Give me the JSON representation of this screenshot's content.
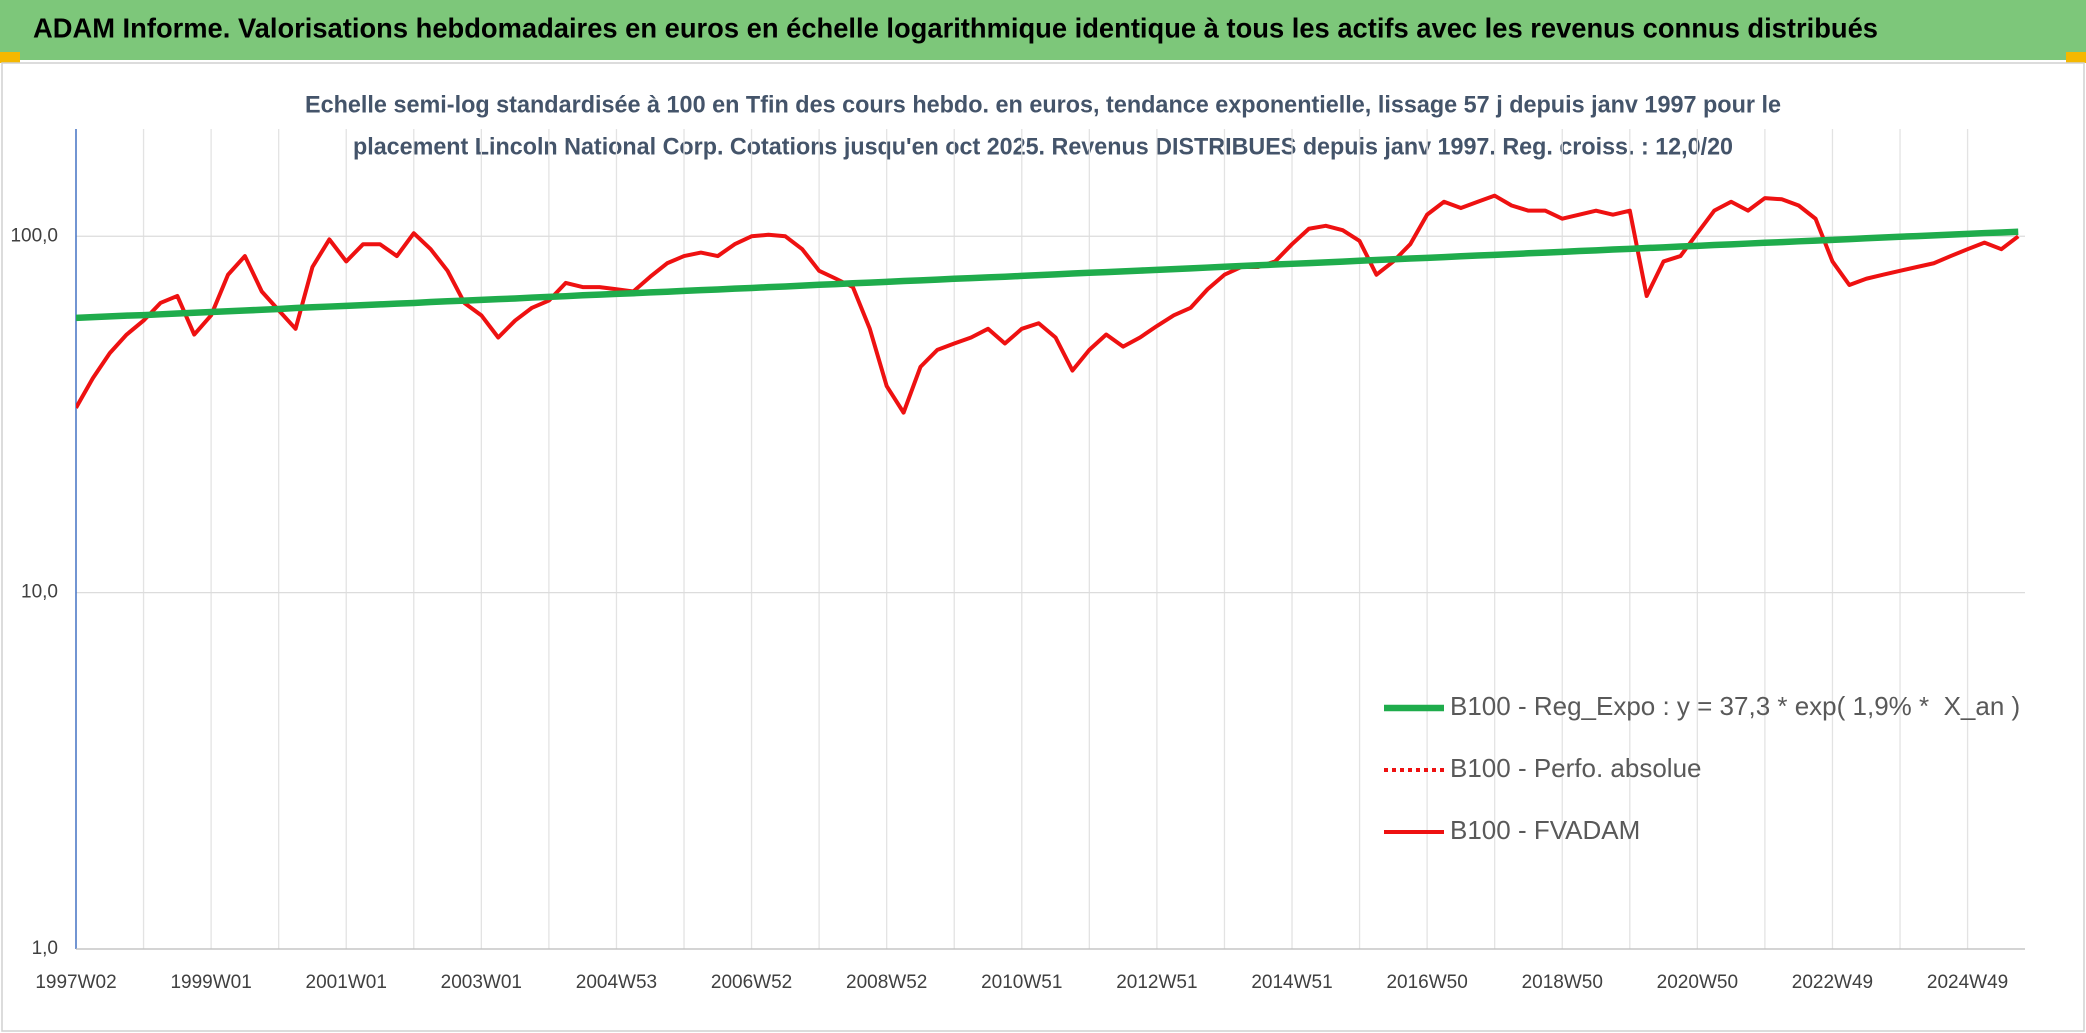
{
  "chart_data": {
    "type": "line",
    "title": "ADAM Informe. Valorisations hebdomadaires en euros en échelle logarithmique identique à tous les actifs avec les revenus connus distribués",
    "subtitle": [
      "Echelle semi-log standardisée à 100 en Tfin des cours hebdo. en euros, tendance exponentielle, lissage 57 j depuis janv 1997 pour le",
      "placement Lincoln National Corp. Cotations jusqu'en oct 2025. Revenus DISTRIBUES depuis janv 1997. Reg. croiss. : 12,0/20"
    ],
    "log_scale": true,
    "grid": true,
    "legend": "bottom-right",
    "ylim": [
      1,
      200
    ],
    "yticks": [
      {
        "value": 1,
        "label": "1,0"
      },
      {
        "value": 10,
        "label": "10,0"
      },
      {
        "value": 100,
        "label": "100,0"
      }
    ],
    "categories": [
      "1997W02",
      null,
      null,
      null,
      null,
      null,
      null,
      null,
      "1999W01",
      null,
      null,
      null,
      null,
      null,
      null,
      null,
      "2001W01",
      null,
      null,
      null,
      null,
      null,
      null,
      null,
      "2003W01",
      null,
      null,
      null,
      null,
      null,
      null,
      null,
      "2004W53",
      null,
      null,
      null,
      null,
      null,
      null,
      null,
      "2006W52",
      null,
      null,
      null,
      null,
      null,
      null,
      null,
      "2008W52",
      null,
      null,
      null,
      null,
      null,
      null,
      null,
      "2010W51",
      null,
      null,
      null,
      null,
      null,
      null,
      null,
      "2012W51",
      null,
      null,
      null,
      null,
      null,
      null,
      null,
      "2014W51",
      null,
      null,
      null,
      null,
      null,
      null,
      null,
      "2016W50",
      null,
      null,
      null,
      null,
      null,
      null,
      null,
      "2018W50",
      null,
      null,
      null,
      null,
      null,
      null,
      null,
      "2020W50",
      null,
      null,
      null,
      null,
      null,
      null,
      null,
      "2022W49",
      null,
      null,
      null,
      null,
      null,
      null,
      null,
      "2024W49",
      null,
      null,
      null
    ],
    "series": [
      {
        "name": "B100 - Reg_Expo : y = 37,3 * exp( 1,9% *  X_an )",
        "color": "#1fac4c",
        "style": "solid",
        "width": 6.5,
        "values": [
          59.0,
          59.3,
          59.6,
          59.9,
          60.1,
          60.4,
          60.7,
          61.0,
          61.3,
          61.6,
          61.9,
          62.2,
          62.5,
          62.9,
          63.2,
          63.5,
          63.8,
          64.1,
          64.4,
          64.7,
          65.0,
          65.4,
          65.7,
          66.0,
          66.3,
          66.6,
          66.9,
          67.3,
          67.6,
          67.9,
          68.3,
          68.6,
          68.9,
          69.2,
          69.6,
          69.9,
          70.3,
          70.6,
          70.9,
          71.3,
          71.6,
          72.0,
          72.3,
          72.7,
          73.1,
          73.4,
          73.8,
          74.1,
          74.5,
          74.9,
          75.2,
          75.6,
          76.0,
          76.3,
          76.7,
          77.0,
          77.4,
          77.8,
          78.2,
          78.6,
          79.0,
          79.3,
          79.7,
          80.1,
          80.5,
          80.9,
          81.3,
          81.7,
          82.1,
          82.5,
          82.9,
          83.3,
          83.7,
          84.1,
          84.5,
          84.9,
          85.4,
          85.8,
          86.2,
          86.6,
          87.0,
          87.4,
          87.9,
          88.3,
          88.7,
          89.1,
          89.6,
          90.0,
          90.4,
          90.9,
          91.3,
          91.8,
          92.2,
          92.7,
          93.1,
          93.6,
          94.0,
          94.5,
          94.9,
          95.4,
          95.9,
          96.3,
          96.8,
          97.2,
          97.7,
          98.2,
          98.7,
          99.2,
          99.7,
          100.1,
          100.6,
          101.1,
          101.6,
          102.1,
          102.5,
          103.0
        ]
      },
      {
        "name": "B100 - Perfo. absolue",
        "color": "#ee1111",
        "style": "dotted",
        "width": 4,
        "values": [
          null,
          null,
          null,
          null,
          null,
          null,
          null,
          null,
          null,
          null,
          null,
          null,
          null,
          null,
          null,
          null,
          null,
          null,
          null,
          null,
          null,
          null,
          null,
          null,
          null,
          null,
          null,
          null,
          null,
          null,
          null,
          null,
          null,
          null,
          null,
          null,
          null,
          null,
          null,
          null,
          null,
          null,
          null,
          null,
          null,
          null,
          null,
          null,
          null,
          null,
          null,
          null,
          null,
          null,
          null,
          null,
          null,
          null,
          null,
          null,
          null,
          null,
          null,
          null,
          null,
          null,
          null,
          null,
          null,
          null,
          null,
          null,
          null,
          null,
          null,
          null,
          null,
          null,
          null,
          null,
          null,
          null,
          null,
          null,
          null,
          null,
          null,
          null,
          null,
          null,
          null,
          null,
          null,
          null,
          null,
          null,
          null,
          null,
          null,
          null,
          null,
          null,
          null,
          null,
          null,
          null,
          null,
          null,
          null,
          null,
          null,
          null,
          null,
          null,
          null,
          null
        ]
      },
      {
        "name": "B100 - FVADAM",
        "color": "#ee1111",
        "style": "solid",
        "width": 4,
        "values": [
          33,
          40,
          47,
          53,
          58,
          65,
          68,
          53,
          60,
          78,
          88,
          70,
          62,
          55,
          82,
          98,
          85,
          95,
          95,
          88,
          102,
          92,
          80,
          65,
          60,
          52,
          58,
          63,
          66,
          74,
          72,
          72,
          71,
          70,
          77,
          84,
          88,
          90,
          88,
          95,
          100,
          101,
          100,
          92,
          80,
          76,
          72,
          55,
          38,
          32,
          43,
          48,
          50,
          52,
          55,
          50,
          55,
          57,
          52,
          42,
          48,
          53,
          49,
          52,
          56,
          60,
          63,
          71,
          78,
          82,
          82,
          85,
          95,
          105,
          107,
          104,
          97,
          78,
          85,
          95,
          115,
          125,
          120,
          125,
          130,
          122,
          118,
          118,
          112,
          115,
          118,
          115,
          118,
          68,
          85,
          88,
          102,
          118,
          125,
          118,
          128,
          127,
          122,
          112,
          85,
          73,
          76,
          78,
          80,
          82,
          84,
          88,
          92,
          96,
          92,
          100
        ]
      }
    ]
  }
}
